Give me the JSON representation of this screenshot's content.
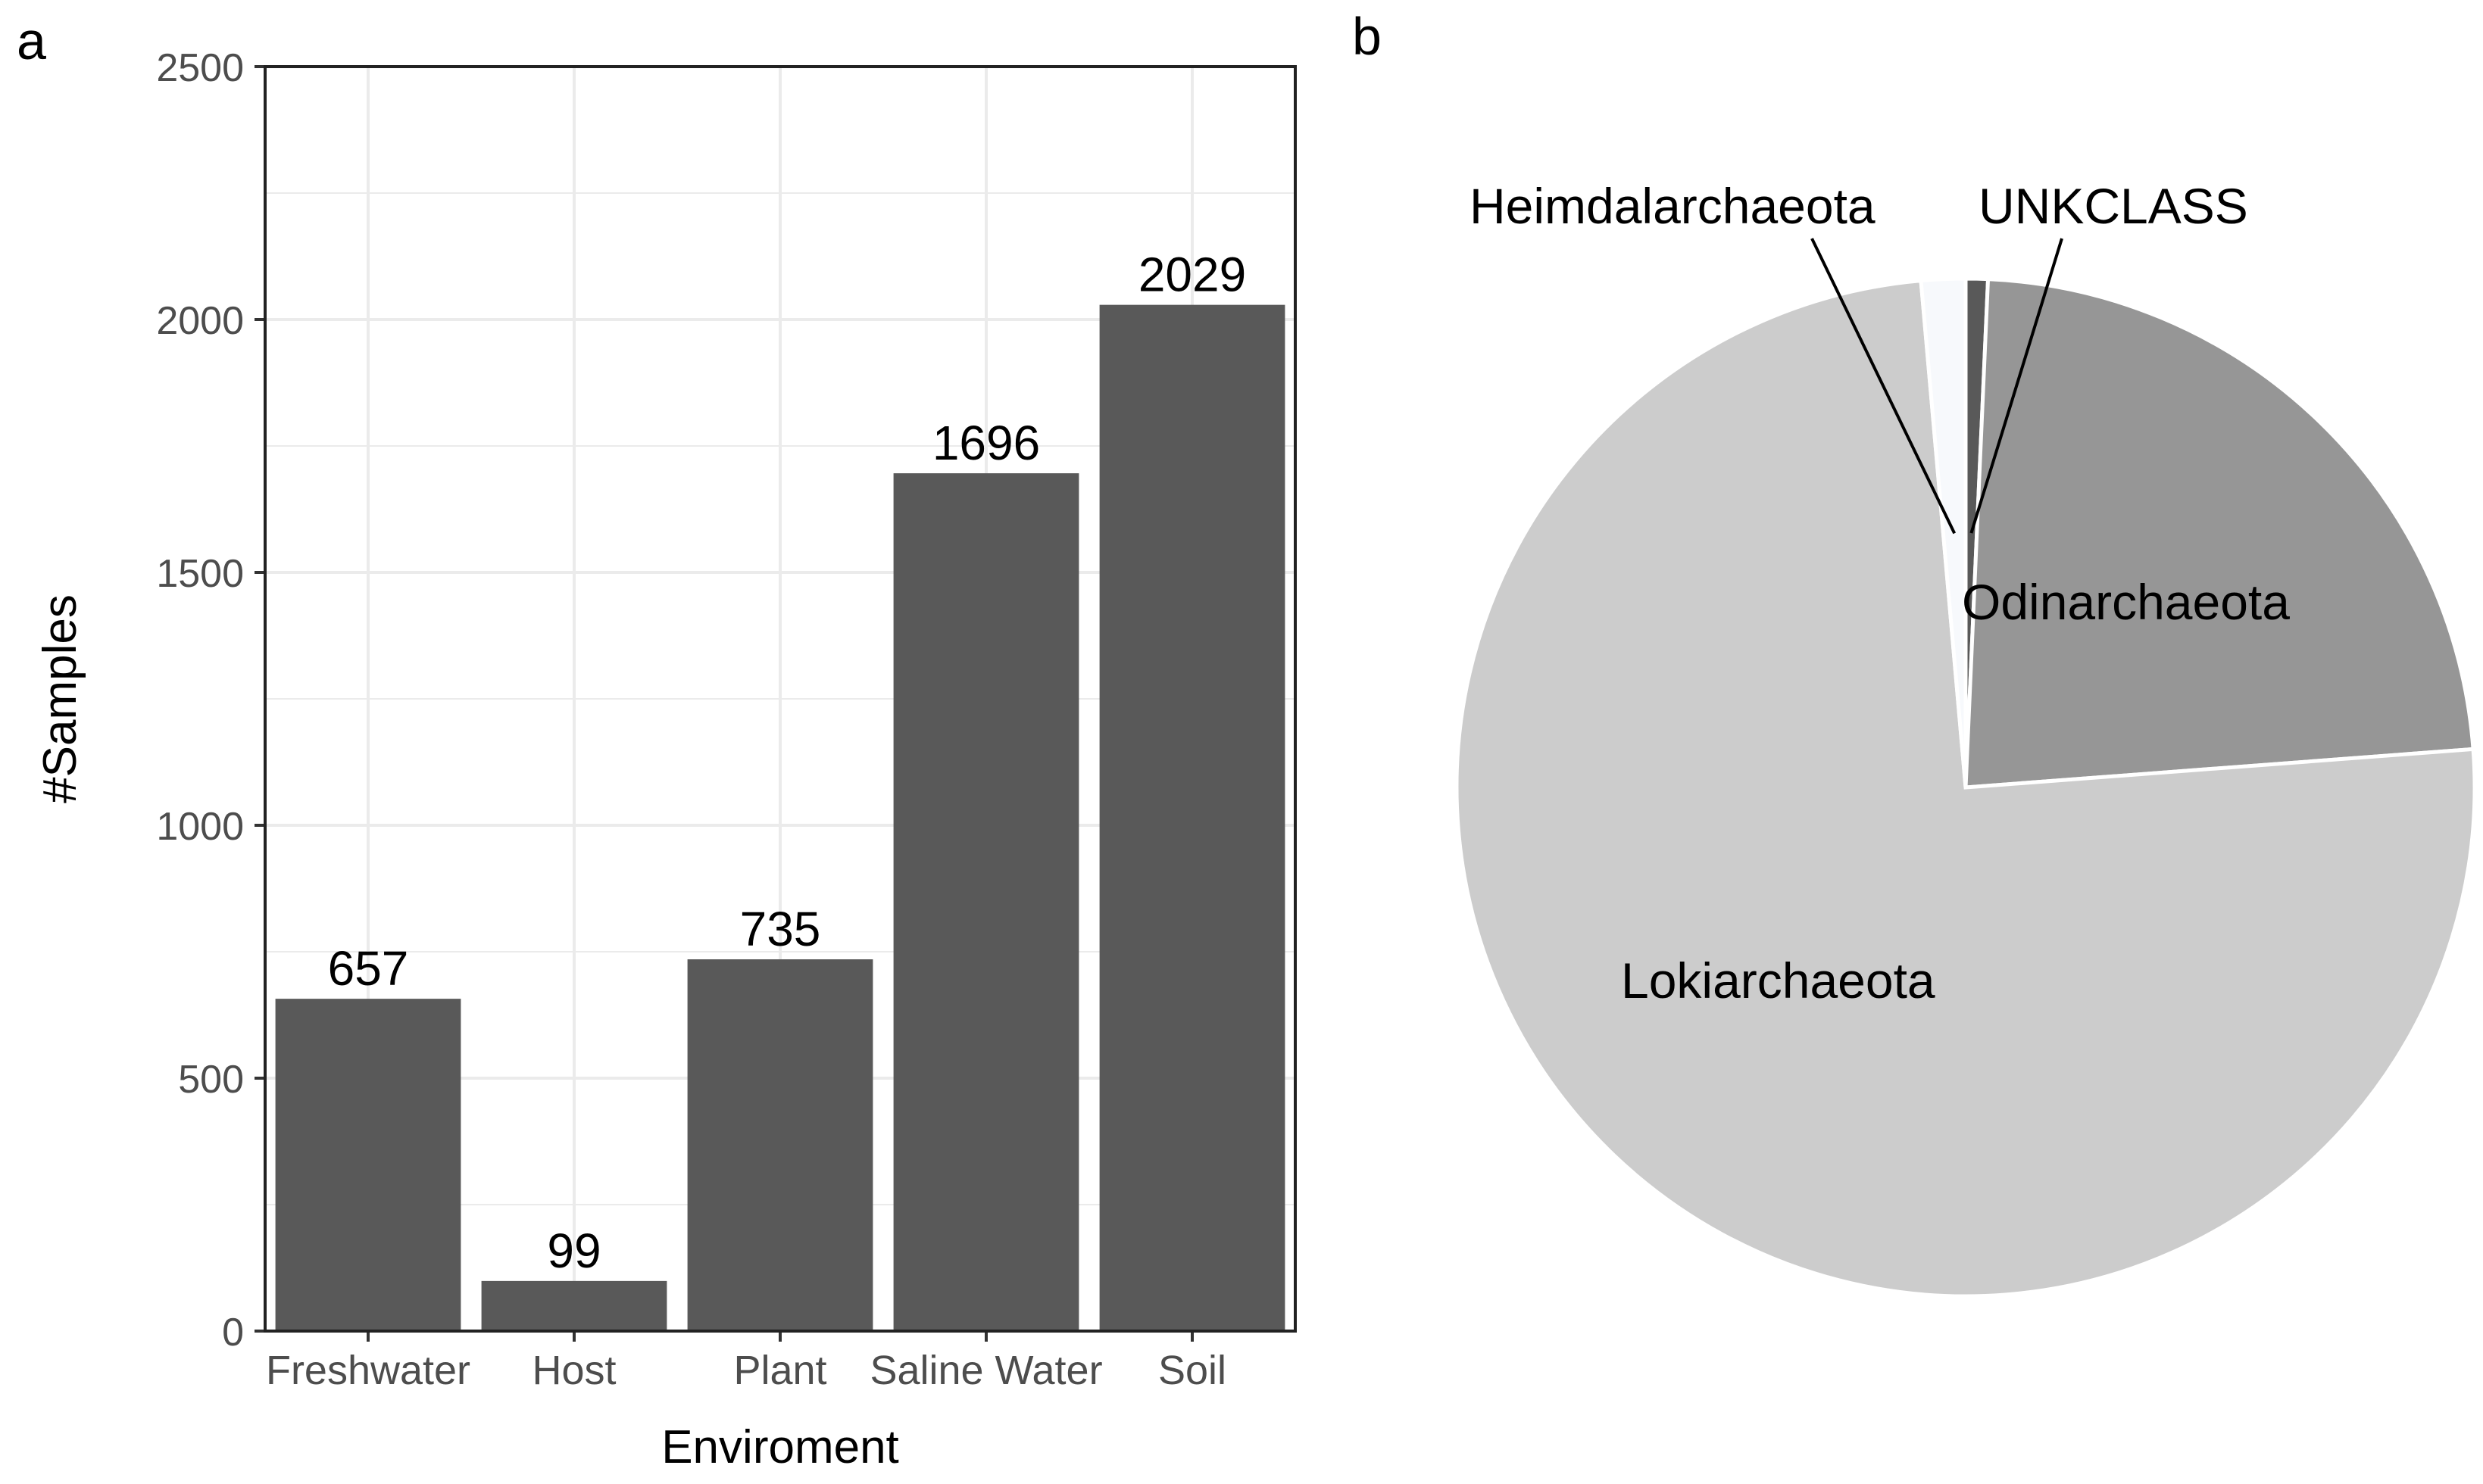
{
  "chart_data": [
    {
      "panel_label": "a",
      "type": "bar",
      "categories": [
        "Freshwater",
        "Host",
        "Plant",
        "Saline Water",
        "Soil"
      ],
      "values": [
        657,
        99,
        735,
        1696,
        2029
      ],
      "data_labels": [
        "657",
        "99",
        "735",
        "1696",
        "2029"
      ],
      "xlabel": "Enviroment",
      "ylabel": "#Samples",
      "ylim": [
        0,
        2500
      ],
      "yticks": [
        "0",
        "500",
        "1000",
        "1500",
        "2000",
        "2500"
      ],
      "grid": true,
      "bar_color": "#595959"
    },
    {
      "panel_label": "b",
      "type": "pie",
      "slices": [
        {
          "label": "UNKCLASS",
          "value": 0.7,
          "color": "#595959"
        },
        {
          "label": "Odinarchaeota",
          "value": 23.1,
          "color": "#969696"
        },
        {
          "label": "Lokiarchaeota",
          "value": 74.8,
          "color": "#cccccc"
        },
        {
          "label": "Heimdalarchaeota",
          "value": 1.4,
          "color": "#f7f9fc"
        }
      ],
      "legend": "none"
    }
  ]
}
